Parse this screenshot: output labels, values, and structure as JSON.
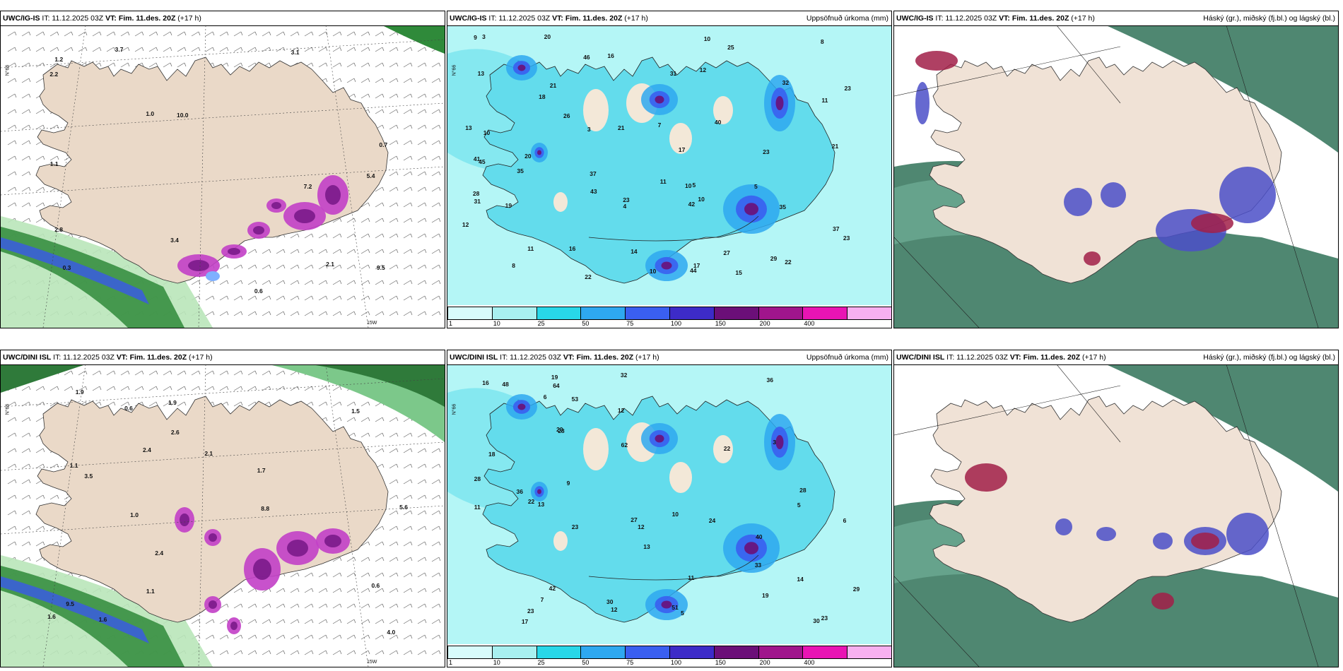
{
  "panels": [
    {
      "model": "UWC/IG-IS",
      "it": "IT: 11.12.2025 03Z",
      "vt_label": "VT:",
      "vt": "Fim. 11.des. 20Z",
      "lead": "(+17 h)",
      "title": "",
      "lat_label": "N°66",
      "lon_label": "15W",
      "labels": [
        "7.2",
        "5.4",
        "0.3",
        "3.7",
        "10.0",
        "2.1",
        "2.8",
        "3.1",
        "1.0",
        "0.6",
        "2.2",
        "1.1",
        "1.2",
        "9.5",
        "3.4",
        "0.7"
      ]
    },
    {
      "model": "UWC/IG-IS",
      "it": "IT: 11.12.2025 03Z",
      "vt_label": "VT:",
      "vt": "Fim. 11.des. 20Z",
      "lead": "(+17 h)",
      "title": "Uppsöfnuð úrkoma (mm)",
      "lat_label": "N°66",
      "labels": [
        "10",
        "10",
        "8",
        "42",
        "37",
        "21",
        "23",
        "5",
        "3",
        "7",
        "11",
        "13",
        "19",
        "23",
        "35",
        "37",
        "40",
        "31",
        "22",
        "18",
        "28",
        "10",
        "4",
        "8",
        "9",
        "10",
        "27",
        "45",
        "35",
        "23",
        "21",
        "43",
        "16",
        "13",
        "11",
        "20",
        "15",
        "12",
        "22",
        "21",
        "20",
        "31",
        "23",
        "46",
        "25",
        "26",
        "29",
        "17",
        "14",
        "11",
        "12",
        "32",
        "41",
        "3",
        "5",
        "10",
        "16",
        "17",
        "44"
      ]
    },
    {
      "model": "UWC/IG-IS",
      "it": "IT: 11.12.2025 03Z",
      "vt_label": "VT:",
      "vt": "Fim. 11.des. 20Z",
      "lead": "(+17 h)",
      "title": "Háský (gr.), miðský (fj.bl.) og lágský (bl.)",
      "labels": []
    },
    {
      "model": "UWC/DINI ISL",
      "it": "IT: 11.12.2025 03Z",
      "vt_label": "VT:",
      "vt": "Fim. 11.des. 20Z",
      "lead": "(+17 h)",
      "title": "",
      "lat_label": "N°66",
      "lon_label": "15W",
      "labels": [
        "1.1",
        "1.9",
        "2.1",
        "1.6",
        "1.9",
        "1.7",
        "1.6",
        "2.4",
        "1.0",
        "0.6",
        "2.4",
        "1.5",
        "9.5",
        "2.6",
        "8.8",
        "5.6",
        "0.6",
        "4.0",
        "1.1",
        "3.5"
      ]
    },
    {
      "model": "UWC/DINI ISL",
      "it": "IT: 11.12.2025 03Z",
      "vt_label": "VT:",
      "vt": "Fim. 11.des. 20Z",
      "lead": "(+17 h)",
      "title": "Uppsöfnuð úrkoma (mm)",
      "lat_label": "N°66",
      "labels": [
        "7",
        "5",
        "9",
        "10",
        "18",
        "42",
        "40",
        "20",
        "23",
        "22",
        "32",
        "36",
        "36",
        "30",
        "28",
        "29",
        "11",
        "12",
        "16",
        "23",
        "13",
        "22",
        "24",
        "19",
        "17",
        "33",
        "27",
        "28",
        "14",
        "51",
        "48",
        "53",
        "62",
        "64",
        "30",
        "12",
        "11",
        "12",
        "3",
        "13",
        "5",
        "6",
        "19",
        "23",
        "28",
        "6"
      ]
    },
    {
      "model": "UWC/DINI ISL",
      "it": "IT: 11.12.2025 03Z",
      "vt_label": "VT:",
      "vt": "Fim. 11.des. 20Z",
      "lead": "(+17 h)",
      "title": "Háský (gr.), miðský (fj.bl.) og lágský (bl.)",
      "labels": []
    }
  ],
  "colorbar": {
    "ticks": [
      "1",
      "10",
      "25",
      "50",
      "75",
      "100",
      "150",
      "200",
      "400"
    ],
    "colors": [
      "#d8fbfb",
      "#a8f0f0",
      "#28d7e8",
      "#2ea8f0",
      "#3a5ff0",
      "#3d2bc8",
      "#6b0f78",
      "#a0158c",
      "#e814b4",
      "#f7b0f0"
    ]
  }
}
